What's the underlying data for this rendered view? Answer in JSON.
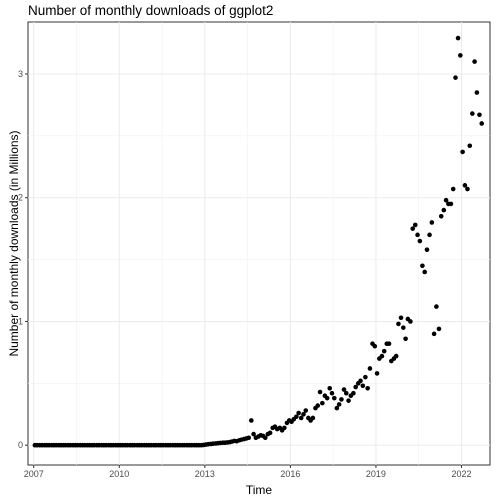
{
  "chart_data": {
    "type": "scatter",
    "title": "Number of monthly downloads of ggplot2",
    "xlabel": "Time",
    "ylabel": "Number of monthly downloads (in Millions)",
    "xlim": [
      2006.8,
      2023.0
    ],
    "ylim": [
      -0.16,
      3.42
    ],
    "x_ticks": [
      2007,
      2010,
      2013,
      2016,
      2019,
      2022
    ],
    "x_tick_labels": [
      "2007",
      "2010",
      "2013",
      "2016",
      "2019",
      "2022"
    ],
    "y_ticks": [
      0,
      1,
      2,
      3
    ],
    "y_tick_labels": [
      "0",
      "1",
      "2",
      "3"
    ],
    "grid": true,
    "point_color": "#000000",
    "x": [
      2007.04,
      2007.12,
      2007.21,
      2007.29,
      2007.38,
      2007.46,
      2007.54,
      2007.63,
      2007.71,
      2007.79,
      2007.88,
      2007.96,
      2008.04,
      2008.12,
      2008.21,
      2008.29,
      2008.38,
      2008.46,
      2008.54,
      2008.63,
      2008.71,
      2008.79,
      2008.88,
      2008.96,
      2009.04,
      2009.12,
      2009.21,
      2009.29,
      2009.38,
      2009.46,
      2009.54,
      2009.63,
      2009.71,
      2009.79,
      2009.88,
      2009.96,
      2010.04,
      2010.12,
      2010.21,
      2010.29,
      2010.38,
      2010.46,
      2010.54,
      2010.63,
      2010.71,
      2010.79,
      2010.88,
      2010.96,
      2011.04,
      2011.12,
      2011.21,
      2011.29,
      2011.38,
      2011.46,
      2011.54,
      2011.63,
      2011.71,
      2011.79,
      2011.88,
      2011.96,
      2012.04,
      2012.12,
      2012.21,
      2012.29,
      2012.38,
      2012.46,
      2012.54,
      2012.63,
      2012.71,
      2012.79,
      2012.88,
      2012.96,
      2013.04,
      2013.12,
      2013.21,
      2013.29,
      2013.38,
      2013.46,
      2013.54,
      2013.63,
      2013.71,
      2013.79,
      2013.88,
      2013.96,
      2014.04,
      2014.12,
      2014.21,
      2014.29,
      2014.38,
      2014.46,
      2014.54,
      2014.63,
      2014.71,
      2014.79,
      2014.88,
      2014.96,
      2015.04,
      2015.12,
      2015.21,
      2015.29,
      2015.38,
      2015.46,
      2015.54,
      2015.63,
      2015.71,
      2015.79,
      2015.88,
      2015.96,
      2016.04,
      2016.12,
      2016.21,
      2016.29,
      2016.38,
      2016.46,
      2016.54,
      2016.63,
      2016.71,
      2016.79,
      2016.88,
      2016.96,
      2017.04,
      2017.12,
      2017.21,
      2017.29,
      2017.38,
      2017.46,
      2017.54,
      2017.63,
      2017.71,
      2017.79,
      2017.88,
      2017.96,
      2018.04,
      2018.12,
      2018.21,
      2018.29,
      2018.38,
      2018.46,
      2018.54,
      2018.63,
      2018.71,
      2018.79,
      2018.88,
      2018.96,
      2019.04,
      2019.12,
      2019.21,
      2019.29,
      2019.38,
      2019.46,
      2019.54,
      2019.63,
      2019.71,
      2019.79,
      2019.88,
      2019.96,
      2020.04,
      2020.12,
      2020.21,
      2020.29,
      2020.38,
      2020.46,
      2020.54,
      2020.63,
      2020.71,
      2020.79,
      2020.88,
      2020.96,
      2021.04,
      2021.12,
      2021.21,
      2021.29,
      2021.38,
      2021.46,
      2021.54,
      2021.63,
      2021.71,
      2021.79,
      2021.88,
      2021.96,
      2022.04,
      2022.12,
      2022.21,
      2022.29,
      2022.38,
      2022.46,
      2022.54,
      2022.63,
      2022.71
    ],
    "y": [
      0,
      0,
      0,
      0,
      0,
      0,
      0,
      0,
      0,
      0,
      0,
      0,
      0,
      0,
      0,
      0,
      0,
      0,
      0,
      0,
      0,
      0,
      0,
      0,
      0,
      0,
      0,
      0,
      0,
      0,
      0,
      0,
      0,
      0,
      0,
      0,
      0,
      0,
      0,
      0,
      0,
      0,
      0,
      0,
      0,
      0,
      0,
      0,
      0,
      0,
      0,
      0,
      0,
      0,
      0,
      0,
      0,
      0,
      0,
      0,
      0,
      0,
      0,
      0,
      0,
      0,
      0,
      0,
      0,
      0,
      0,
      0.002,
      0.005,
      0.008,
      0.01,
      0.012,
      0.014,
      0.016,
      0.018,
      0.02,
      0.02,
      0.022,
      0.025,
      0.03,
      0.035,
      0.032,
      0.04,
      0.045,
      0.05,
      0.055,
      0.06,
      0.2,
      0.09,
      0.06,
      0.07,
      0.08,
      0.075,
      0.06,
      0.09,
      0.1,
      0.14,
      0.15,
      0.13,
      0.14,
      0.12,
      0.14,
      0.18,
      0.2,
      0.19,
      0.21,
      0.23,
      0.26,
      0.22,
      0.25,
      0.28,
      0.22,
      0.2,
      0.22,
      0.3,
      0.32,
      0.43,
      0.34,
      0.4,
      0.38,
      0.46,
      0.42,
      0.38,
      0.3,
      0.33,
      0.37,
      0.45,
      0.42,
      0.36,
      0.4,
      0.42,
      0.47,
      0.5,
      0.52,
      0.48,
      0.55,
      0.46,
      0.62,
      0.82,
      0.8,
      0.58,
      0.7,
      0.72,
      0.76,
      0.82,
      0.82,
      0.68,
      0.7,
      0.72,
      0.98,
      1.03,
      0.95,
      0.86,
      1.02,
      1.0,
      1.75,
      1.78,
      1.7,
      1.65,
      1.45,
      1.4,
      1.58,
      1.7,
      1.8,
      0.9,
      1.12,
      0.94,
      1.85,
      1.9,
      1.98,
      1.95,
      1.95,
      2.07,
      2.97,
      3.29,
      3.15,
      2.37,
      2.1,
      2.07,
      2.42,
      2.68,
      3.1,
      2.85,
      2.67,
      2.6
    ]
  }
}
